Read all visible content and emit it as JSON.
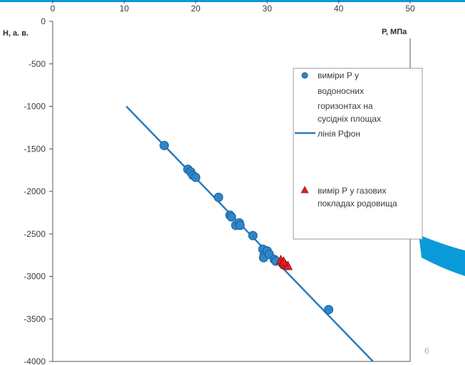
{
  "chart_data": {
    "type": "scatter",
    "xlabel": "P, МПа",
    "ylabel": "H, а. в.",
    "xlim": [
      0,
      50
    ],
    "ylim": [
      -4000,
      0
    ],
    "x_ticks": [
      "0",
      "10",
      "20",
      "30",
      "40",
      "50"
    ],
    "y_ticks": [
      "0",
      "-500",
      "-1000",
      "-1500",
      "-2000",
      "-2500",
      "-3000",
      "-3500",
      "-4000"
    ],
    "grid": false,
    "legend_position": "right",
    "series": [
      {
        "name": "виміри Р у водоносних горизонтах на сусідніх площах",
        "type": "scatter",
        "marker": "circle",
        "color": "#2e86c9",
        "points": [
          [
            15.6,
            -1460
          ],
          [
            18.9,
            -1740
          ],
          [
            19.3,
            -1770
          ],
          [
            19.6,
            -1810
          ],
          [
            20.0,
            -1835
          ],
          [
            23.2,
            -2070
          ],
          [
            24.8,
            -2280
          ],
          [
            25.0,
            -2300
          ],
          [
            25.6,
            -2400
          ],
          [
            26.1,
            -2370
          ],
          [
            26.2,
            -2400
          ],
          [
            28.0,
            -2520
          ],
          [
            29.4,
            -2680
          ],
          [
            29.6,
            -2740
          ],
          [
            29.5,
            -2780
          ],
          [
            30.0,
            -2700
          ],
          [
            30.3,
            -2740
          ],
          [
            31.0,
            -2800
          ],
          [
            31.2,
            -2820
          ],
          [
            38.6,
            -3390
          ]
        ]
      },
      {
        "name": "лінія Рфон",
        "type": "line",
        "color": "#2b7bbf",
        "points": [
          [
            10.3,
            -1000
          ],
          [
            44.8,
            -4000
          ]
        ]
      },
      {
        "name": "вимір Р у газових покладах родовища",
        "type": "scatter",
        "marker": "triangle",
        "color": "#e02020",
        "points": [
          [
            31.9,
            -2810
          ],
          [
            32.2,
            -2840
          ],
          [
            32.4,
            -2860
          ],
          [
            32.6,
            -2870
          ],
          [
            32.9,
            -2880
          ],
          [
            32.3,
            -2830
          ]
        ]
      }
    ]
  },
  "colors": {
    "accent": "#0b9ad9",
    "axis": "#555555"
  },
  "page_number": "6"
}
